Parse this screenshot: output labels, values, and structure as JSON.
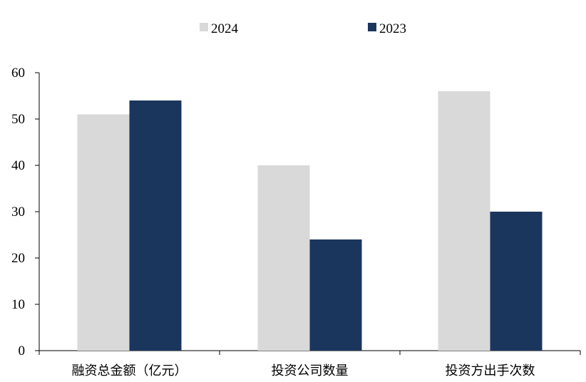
{
  "chart_data": {
    "type": "bar",
    "categories": [
      "融资总金额（亿元）",
      "投资公司数量",
      "投资方出手次数"
    ],
    "series": [
      {
        "name": "2024",
        "values": [
          51,
          40,
          56
        ],
        "color": "#d9d9d9"
      },
      {
        "name": "2023",
        "values": [
          54,
          24,
          30
        ],
        "color": "#1b365d"
      }
    ],
    "ylim": [
      0,
      60
    ],
    "yticks": [
      0,
      10,
      20,
      30,
      40,
      50,
      60
    ],
    "title": "",
    "xlabel": "",
    "ylabel": "",
    "grid": false,
    "legend_position": "top-center"
  }
}
